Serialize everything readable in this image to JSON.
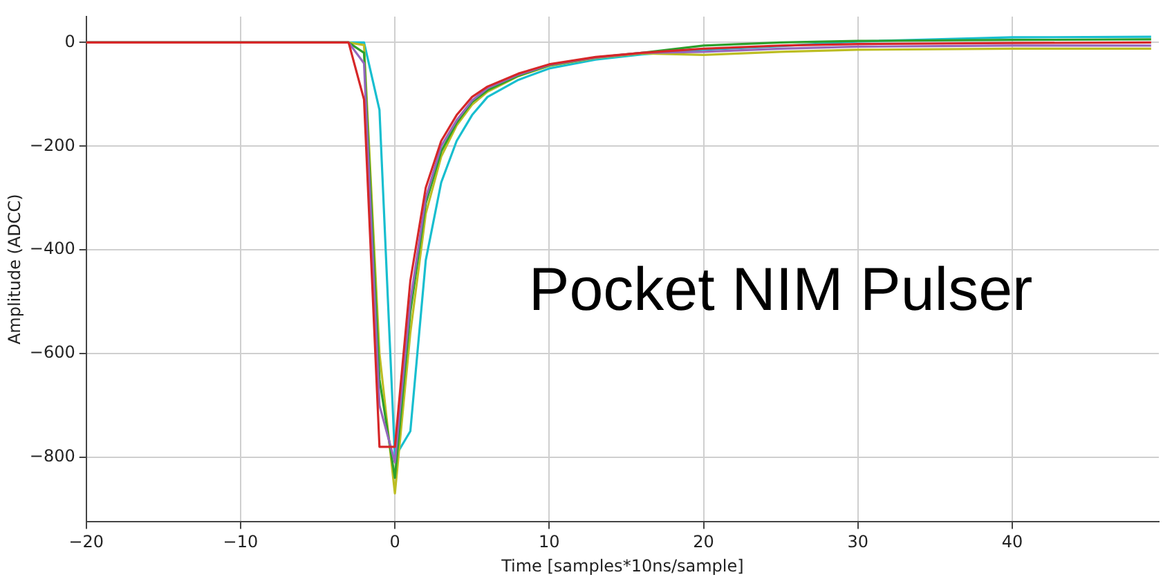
{
  "chart_data": {
    "type": "line",
    "xlabel": "Time [samples*10ns/sample]",
    "ylabel": "Amplitude (ADCC)",
    "annotations": [
      "Pocket NIM Pulser"
    ],
    "x": [
      -20,
      -10,
      -3,
      -2,
      -1,
      0,
      1,
      2,
      3,
      4,
      5,
      6,
      8,
      10,
      13,
      16,
      20,
      25,
      30,
      40,
      49
    ],
    "series": [
      {
        "color": "#d62728",
        "values": [
          0,
          0,
          0,
          -110,
          -780,
          -780,
          -460,
          -280,
          -190,
          -140,
          -105,
          -85,
          -60,
          -42,
          -28,
          -20,
          -12,
          -6,
          -3,
          -1,
          0
        ]
      },
      {
        "color": "#9467bd",
        "values": [
          0,
          0,
          0,
          -40,
          -700,
          -810,
          -500,
          -300,
          -200,
          -150,
          -112,
          -88,
          -62,
          -43,
          -29,
          -20,
          -18,
          -12,
          -8,
          -6,
          -6
        ]
      },
      {
        "color": "#2ca02c",
        "values": [
          0,
          0,
          0,
          -20,
          -650,
          -840,
          -520,
          -310,
          -210,
          -155,
          -115,
          -92,
          -64,
          -44,
          -29,
          -20,
          -6,
          0,
          3,
          5,
          6
        ]
      },
      {
        "color": "#bcbd22",
        "values": [
          0,
          0,
          0,
          -5,
          -600,
          -870,
          -560,
          -330,
          -220,
          -160,
          -120,
          -95,
          -65,
          -45,
          -30,
          -21,
          -24,
          -18,
          -14,
          -12,
          -12
        ]
      },
      {
        "color": "#17becf",
        "values": [
          0,
          0,
          0,
          0,
          -130,
          -800,
          -750,
          -420,
          -270,
          -190,
          -140,
          -105,
          -72,
          -50,
          -33,
          -23,
          -14,
          -7,
          2,
          10,
          11
        ]
      }
    ],
    "xlim": [
      -20,
      49.5
    ],
    "ylim": [
      -925,
      50
    ],
    "xticks": [
      -20,
      -10,
      0,
      10,
      20,
      30,
      40
    ],
    "yticks": [
      -800,
      -600,
      -400,
      -200,
      0
    ],
    "grid": true,
    "legend": false,
    "marker": "none",
    "line_style": "solid"
  }
}
